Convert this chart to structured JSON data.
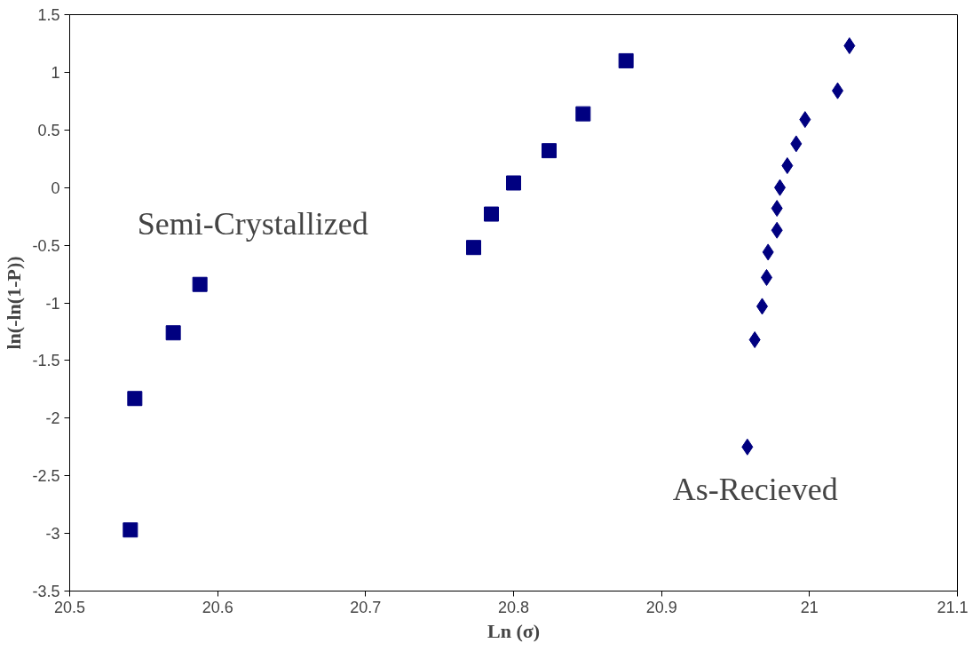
{
  "chart_data": {
    "type": "scatter",
    "xlabel": "Ln (σ)",
    "ylabel": "ln(-ln(1-P))",
    "series": [
      {
        "name": "Semi-Crystallized",
        "color": "#000080",
        "marker": "square",
        "x": [
          20.541,
          20.544,
          20.57,
          20.588,
          20.773,
          20.785,
          20.8,
          20.824,
          20.847,
          20.876
        ],
        "values": [
          -2.97,
          -1.83,
          -1.26,
          -0.84,
          -0.52,
          -0.23,
          0.04,
          0.32,
          0.64,
          1.1
        ]
      },
      {
        "name": "As-Recieved",
        "color": "#000080",
        "marker": "diamond",
        "x": [
          20.958,
          20.963,
          20.968,
          20.971,
          20.972,
          20.978,
          20.978,
          20.98,
          20.985,
          20.991,
          20.997,
          21.019,
          21.027
        ],
        "values": [
          -2.25,
          -1.32,
          -1.03,
          -0.78,
          -0.56,
          -0.37,
          -0.18,
          0.0,
          0.19,
          0.38,
          0.59,
          0.84,
          1.23
        ]
      }
    ],
    "xlim": [
      20.5,
      21.1
    ],
    "xticks": [
      20.5,
      20.6,
      20.7,
      20.8,
      20.9,
      {
        "value": 21,
        "label": "21"
      },
      21.1
    ],
    "ylim": [
      -3.5,
      1.5
    ],
    "yticks": [
      -3.5,
      -3,
      -2.5,
      -2,
      -1.5,
      -1,
      -0.5,
      {
        "value": 0,
        "label": "0"
      },
      0.5,
      {
        "value": 1,
        "label": "1"
      },
      1.5
    ]
  }
}
